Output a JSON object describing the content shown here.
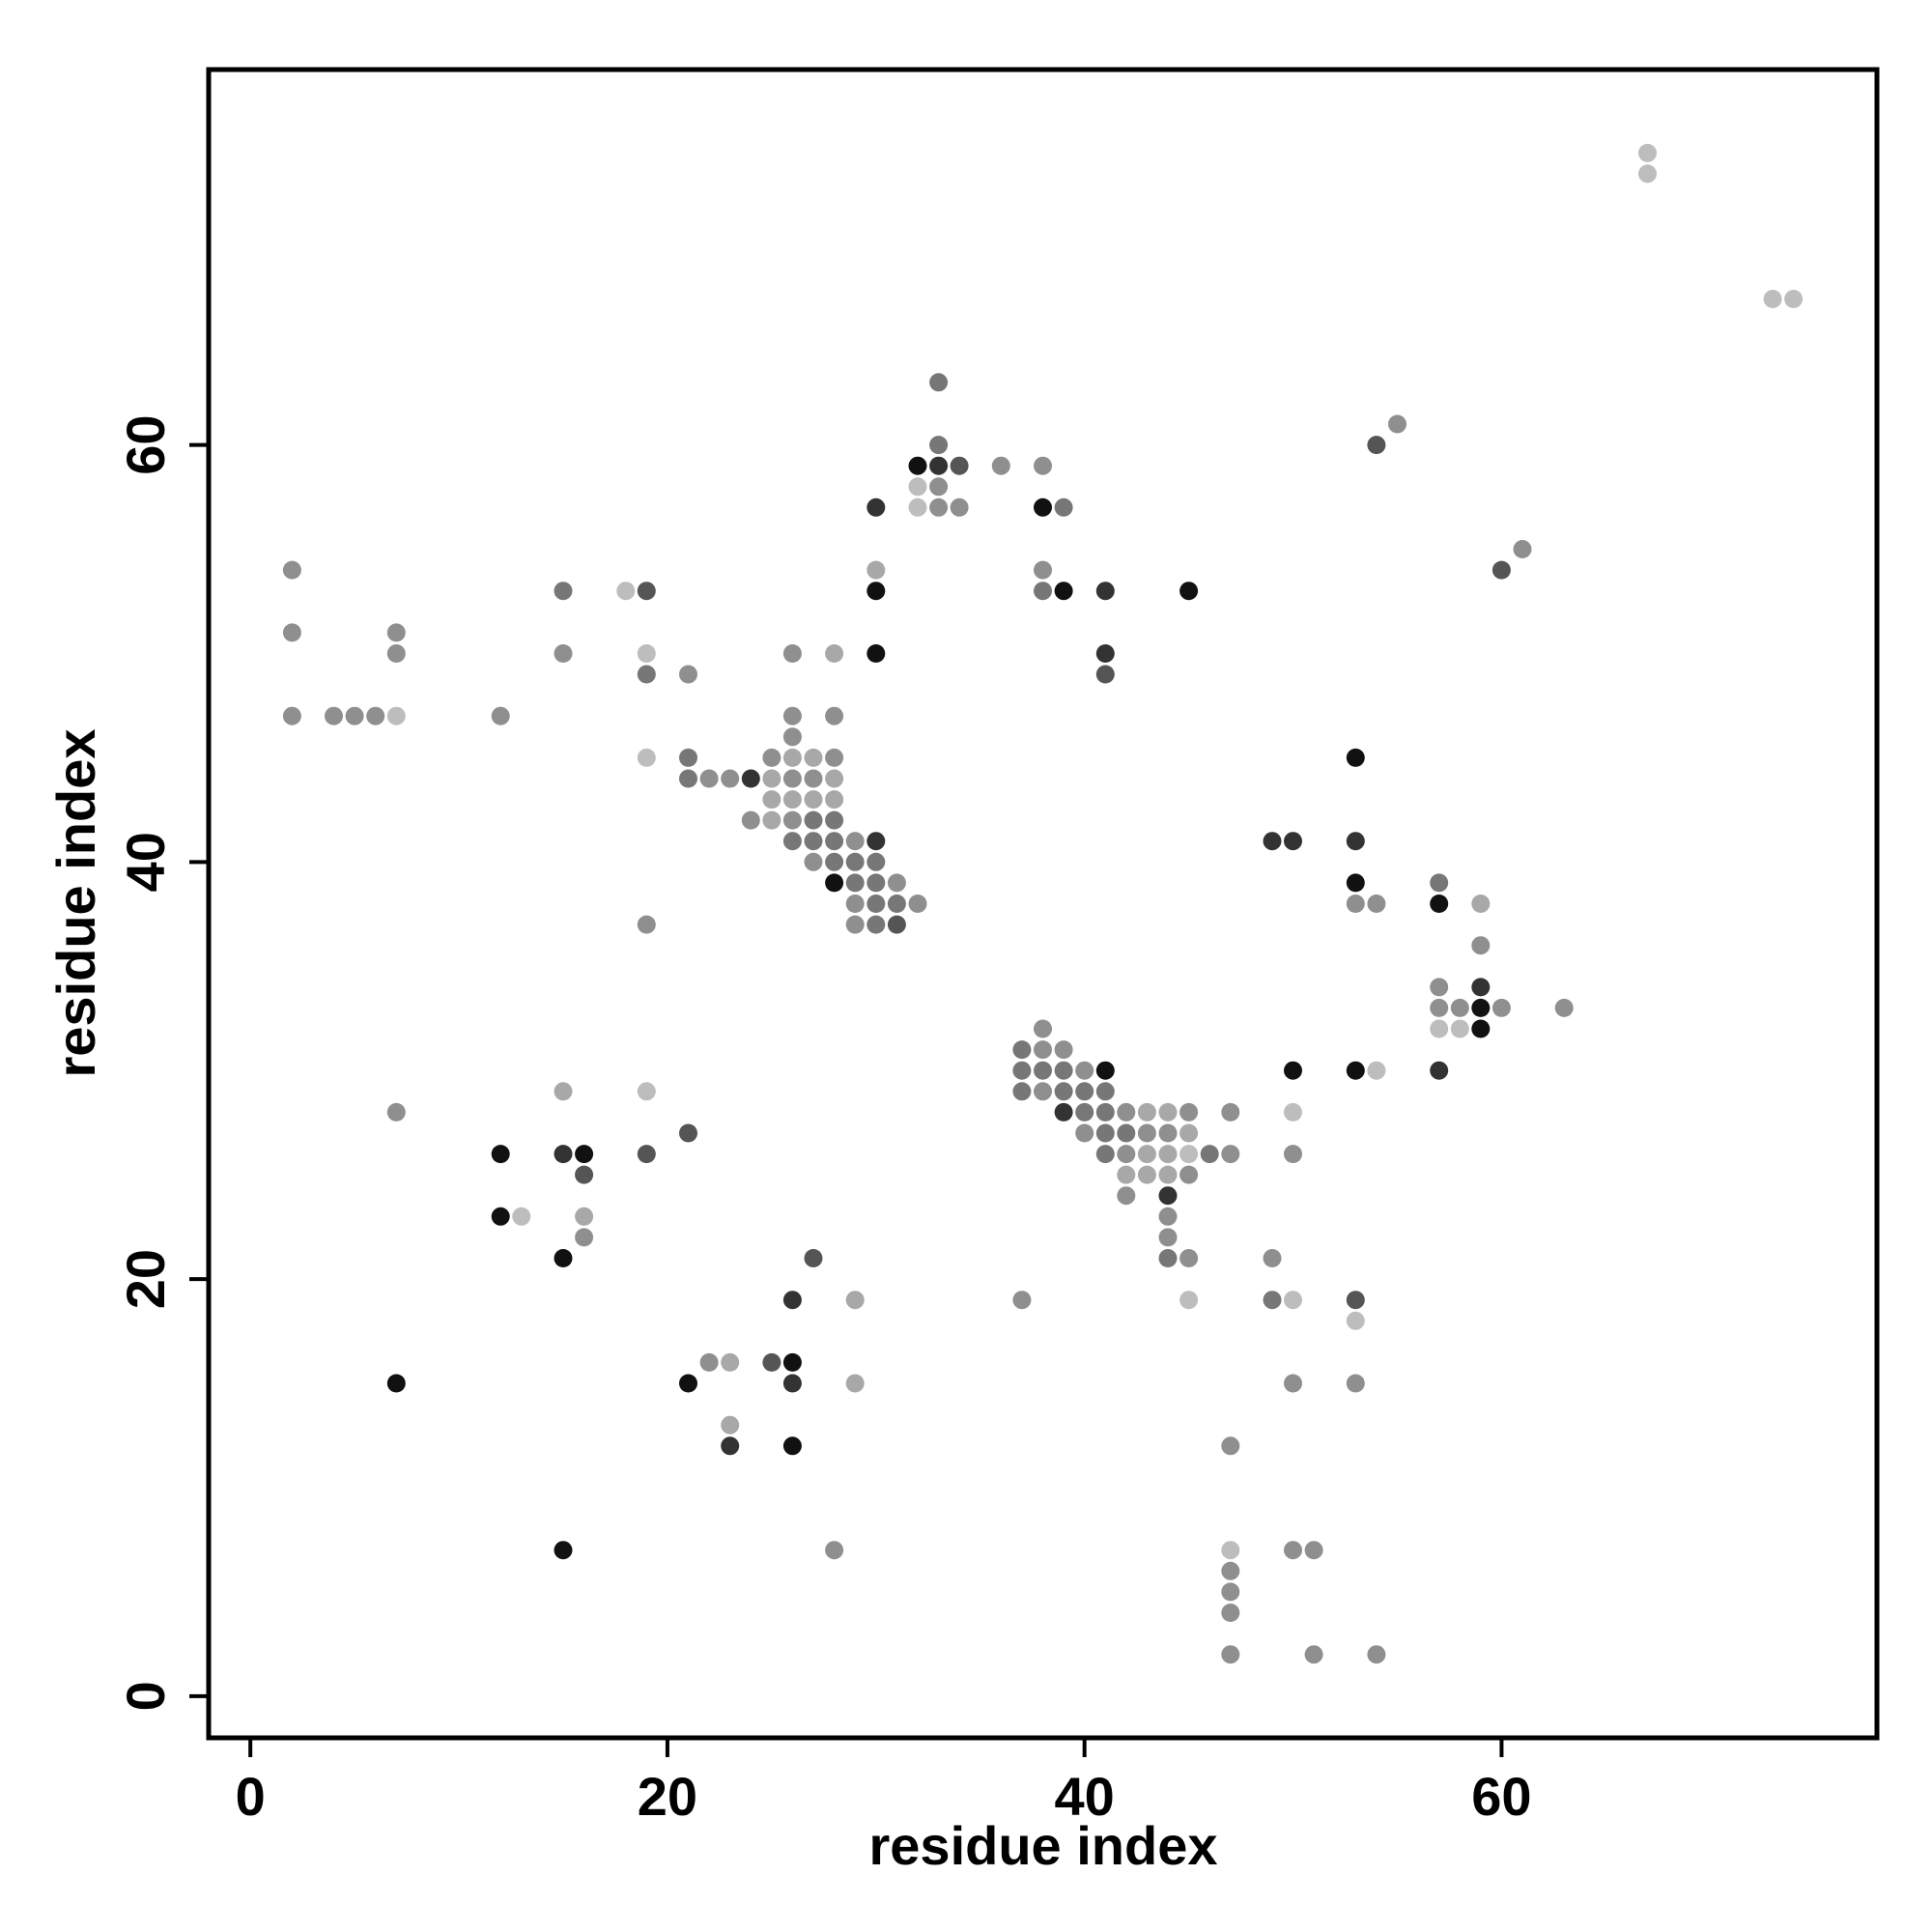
{
  "chart_data": {
    "type": "scatter",
    "title": "",
    "xlabel": "residue index",
    "ylabel": "residue index",
    "xlim": [
      -2,
      78
    ],
    "ylim": [
      -2,
      78
    ],
    "xticks": [
      0,
      20,
      40,
      60
    ],
    "yticks": [
      0,
      20,
      40,
      60
    ],
    "grid": false,
    "color_scale": {
      "1": "#111111",
      "2": "#333333",
      "3": "#555555",
      "4": "#777777",
      "5": "#8f8f8f",
      "6": "#a8a8a8",
      "7": "#bdbdbd"
    },
    "points": [
      [
        2,
        54,
        5
      ],
      [
        2,
        51,
        5
      ],
      [
        2,
        47,
        5
      ],
      [
        4,
        47,
        5
      ],
      [
        5,
        47,
        5
      ],
      [
        6,
        47,
        5
      ],
      [
        7,
        47,
        7
      ],
      [
        7,
        51,
        5
      ],
      [
        7,
        50,
        5
      ],
      [
        7,
        28,
        5
      ],
      [
        7,
        15,
        1
      ],
      [
        12,
        47,
        5
      ],
      [
        12,
        26,
        1
      ],
      [
        12,
        23,
        1
      ],
      [
        13,
        23,
        7
      ],
      [
        15,
        53,
        4
      ],
      [
        15,
        50,
        5
      ],
      [
        15,
        29,
        6
      ],
      [
        15,
        26,
        2
      ],
      [
        15,
        21,
        1
      ],
      [
        15,
        7,
        1
      ],
      [
        16,
        26,
        1
      ],
      [
        16,
        25,
        3
      ],
      [
        16,
        23,
        6
      ],
      [
        16,
        22,
        5
      ],
      [
        18,
        53,
        7
      ],
      [
        19,
        53,
        3
      ],
      [
        19,
        50,
        7
      ],
      [
        19,
        49,
        4
      ],
      [
        19,
        45,
        7
      ],
      [
        19,
        37,
        5
      ],
      [
        19,
        29,
        7
      ],
      [
        19,
        26,
        3
      ],
      [
        21,
        49,
        5
      ],
      [
        21,
        45,
        4
      ],
      [
        21,
        44,
        4
      ],
      [
        21,
        27,
        3
      ],
      [
        21,
        15,
        1
      ],
      [
        22,
        44,
        5
      ],
      [
        22,
        16,
        5
      ],
      [
        23,
        44,
        5
      ],
      [
        23,
        16,
        6
      ],
      [
        23,
        13,
        6
      ],
      [
        23,
        12,
        2
      ],
      [
        24,
        44,
        2
      ],
      [
        24,
        42,
        5
      ],
      [
        25,
        45,
        5
      ],
      [
        25,
        44,
        6
      ],
      [
        25,
        43,
        6
      ],
      [
        25,
        42,
        6
      ],
      [
        25,
        16,
        3
      ],
      [
        26,
        47,
        5
      ],
      [
        26,
        46,
        5
      ],
      [
        26,
        45,
        6
      ],
      [
        26,
        44,
        5
      ],
      [
        26,
        43,
        6
      ],
      [
        26,
        42,
        5
      ],
      [
        26,
        41,
        4
      ],
      [
        26,
        50,
        5
      ],
      [
        26,
        19,
        2
      ],
      [
        26,
        16,
        1
      ],
      [
        26,
        15,
        2
      ],
      [
        26,
        12,
        1
      ],
      [
        27,
        45,
        6
      ],
      [
        27,
        44,
        5
      ],
      [
        27,
        43,
        6
      ],
      [
        27,
        42,
        4
      ],
      [
        27,
        41,
        4
      ],
      [
        27,
        40,
        5
      ],
      [
        27,
        21,
        3
      ],
      [
        28,
        50,
        6
      ],
      [
        28,
        47,
        5
      ],
      [
        28,
        45,
        5
      ],
      [
        28,
        44,
        6
      ],
      [
        28,
        43,
        6
      ],
      [
        28,
        42,
        4
      ],
      [
        28,
        41,
        4
      ],
      [
        28,
        40,
        4
      ],
      [
        28,
        39,
        1
      ],
      [
        28,
        7,
        5
      ],
      [
        29,
        41,
        5
      ],
      [
        29,
        40,
        4
      ],
      [
        29,
        39,
        4
      ],
      [
        29,
        38,
        5
      ],
      [
        29,
        37,
        5
      ],
      [
        29,
        19,
        6
      ],
      [
        29,
        15,
        6
      ],
      [
        30,
        57,
        2
      ],
      [
        30,
        54,
        6
      ],
      [
        30,
        53,
        1
      ],
      [
        30,
        50,
        1
      ],
      [
        30,
        41,
        2
      ],
      [
        30,
        40,
        4
      ],
      [
        30,
        39,
        4
      ],
      [
        30,
        38,
        4
      ],
      [
        30,
        37,
        4
      ],
      [
        31,
        39,
        5
      ],
      [
        31,
        38,
        4
      ],
      [
        31,
        37,
        3
      ],
      [
        32,
        38,
        5
      ],
      [
        32,
        59,
        1
      ],
      [
        32,
        58,
        7
      ],
      [
        32,
        57,
        7
      ],
      [
        33,
        63,
        4
      ],
      [
        33,
        60,
        4
      ],
      [
        33,
        59,
        2
      ],
      [
        33,
        58,
        5
      ],
      [
        33,
        57,
        5
      ],
      [
        34,
        59,
        3
      ],
      [
        34,
        57,
        5
      ],
      [
        36,
        59,
        5
      ],
      [
        37,
        31,
        4
      ],
      [
        37,
        30,
        4
      ],
      [
        37,
        29,
        4
      ],
      [
        37,
        19,
        5
      ],
      [
        38,
        59,
        5
      ],
      [
        38,
        57,
        1
      ],
      [
        38,
        54,
        5
      ],
      [
        38,
        53,
        4
      ],
      [
        38,
        32,
        5
      ],
      [
        38,
        31,
        5
      ],
      [
        38,
        30,
        4
      ],
      [
        38,
        29,
        5
      ],
      [
        39,
        57,
        4
      ],
      [
        39,
        53,
        1
      ],
      [
        39,
        31,
        5
      ],
      [
        39,
        30,
        4
      ],
      [
        39,
        29,
        4
      ],
      [
        39,
        28,
        2
      ],
      [
        40,
        30,
        5
      ],
      [
        40,
        29,
        4
      ],
      [
        40,
        28,
        4
      ],
      [
        40,
        27,
        5
      ],
      [
        41,
        53,
        2
      ],
      [
        41,
        50,
        2
      ],
      [
        41,
        49,
        3
      ],
      [
        41,
        30,
        1
      ],
      [
        41,
        29,
        4
      ],
      [
        41,
        28,
        4
      ],
      [
        41,
        27,
        4
      ],
      [
        41,
        26,
        4
      ],
      [
        42,
        28,
        5
      ],
      [
        42,
        27,
        4
      ],
      [
        42,
        26,
        5
      ],
      [
        42,
        25,
        6
      ],
      [
        42,
        24,
        5
      ],
      [
        43,
        28,
        6
      ],
      [
        43,
        27,
        5
      ],
      [
        43,
        26,
        6
      ],
      [
        43,
        25,
        6
      ],
      [
        44,
        28,
        6
      ],
      [
        44,
        27,
        5
      ],
      [
        44,
        26,
        6
      ],
      [
        44,
        25,
        6
      ],
      [
        44,
        24,
        2
      ],
      [
        44,
        23,
        5
      ],
      [
        44,
        22,
        5
      ],
      [
        44,
        21,
        4
      ],
      [
        45,
        53,
        1
      ],
      [
        45,
        28,
        5
      ],
      [
        45,
        27,
        6
      ],
      [
        45,
        26,
        7
      ],
      [
        45,
        25,
        5
      ],
      [
        45,
        21,
        5
      ],
      [
        45,
        19,
        7
      ],
      [
        46,
        26,
        4
      ],
      [
        47,
        28,
        5
      ],
      [
        47,
        26,
        5
      ],
      [
        47,
        12,
        5
      ],
      [
        47,
        7,
        7
      ],
      [
        47,
        6,
        5
      ],
      [
        47,
        5,
        5
      ],
      [
        47,
        4,
        5
      ],
      [
        47,
        2,
        5
      ],
      [
        49,
        41,
        2
      ],
      [
        49,
        21,
        5
      ],
      [
        49,
        19,
        4
      ],
      [
        50,
        41,
        2
      ],
      [
        50,
        30,
        1
      ],
      [
        50,
        28,
        7
      ],
      [
        50,
        26,
        5
      ],
      [
        50,
        19,
        7
      ],
      [
        50,
        15,
        5
      ],
      [
        50,
        7,
        5
      ],
      [
        51,
        7,
        5
      ],
      [
        51,
        2,
        5
      ],
      [
        53,
        45,
        1
      ],
      [
        53,
        41,
        2
      ],
      [
        53,
        39,
        1
      ],
      [
        53,
        38,
        5
      ],
      [
        53,
        30,
        1
      ],
      [
        53,
        19,
        3
      ],
      [
        53,
        18,
        7
      ],
      [
        53,
        15,
        5
      ],
      [
        54,
        60,
        3
      ],
      [
        54,
        38,
        5
      ],
      [
        54,
        30,
        7
      ],
      [
        54,
        2,
        5
      ],
      [
        55,
        61,
        5
      ],
      [
        57,
        39,
        4
      ],
      [
        57,
        38,
        1
      ],
      [
        57,
        34,
        5
      ],
      [
        57,
        33,
        5
      ],
      [
        57,
        32,
        7
      ],
      [
        57,
        30,
        2
      ],
      [
        58,
        33,
        5
      ],
      [
        58,
        32,
        7
      ],
      [
        59,
        38,
        6
      ],
      [
        59,
        36,
        5
      ],
      [
        59,
        34,
        2
      ],
      [
        59,
        33,
        1
      ],
      [
        59,
        32,
        1
      ],
      [
        60,
        54,
        3
      ],
      [
        60,
        33,
        5
      ],
      [
        61,
        55,
        5
      ],
      [
        63,
        33,
        5
      ],
      [
        67,
        74,
        7
      ],
      [
        67,
        73,
        7
      ],
      [
        73,
        67,
        7
      ],
      [
        74,
        67,
        7
      ]
    ]
  }
}
